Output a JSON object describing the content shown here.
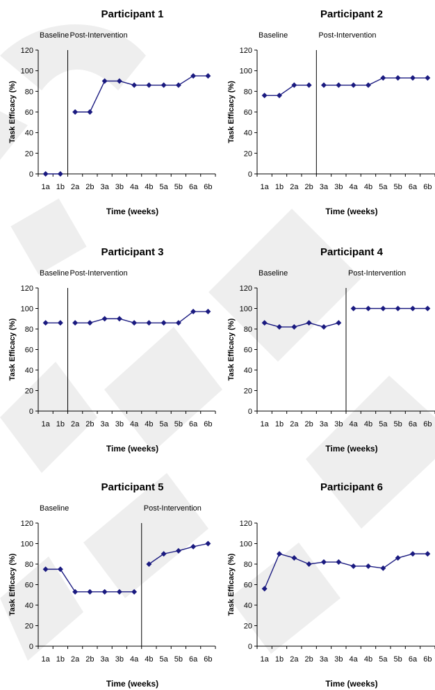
{
  "chart_data": [
    {
      "type": "line",
      "title": "Participant 1",
      "xlabel": "Time (weeks)",
      "ylabel": "Task Efficacy (%)",
      "categories": [
        "1a",
        "1b",
        "2a",
        "2b",
        "3a",
        "3b",
        "4a",
        "4b",
        "5a",
        "5b",
        "6a",
        "6b"
      ],
      "phase_labels": [
        "Baseline",
        "Post-Intervention"
      ],
      "phase_change_after_index": 1,
      "series": [
        {
          "values": [
            0,
            0,
            60,
            60,
            90,
            90,
            86,
            86,
            86,
            86,
            95,
            95
          ]
        }
      ],
      "ylim": [
        0,
        120
      ],
      "yticks": [
        0,
        20,
        40,
        60,
        80,
        100,
        120
      ],
      "grid": false,
      "legend": "none"
    },
    {
      "type": "line",
      "title": "Participant 2",
      "xlabel": "Time (weeks)",
      "ylabel": "Task Efficacy (%)",
      "categories": [
        "1a",
        "1b",
        "2a",
        "2b",
        "3a",
        "3b",
        "4a",
        "4b",
        "5a",
        "5b",
        "6a",
        "6b"
      ],
      "phase_labels": [
        "Baseline",
        "Post-Intervention"
      ],
      "phase_change_after_index": 3,
      "series": [
        {
          "values": [
            76,
            76,
            86,
            86,
            86,
            86,
            86,
            86,
            93,
            93,
            93,
            93
          ]
        }
      ],
      "ylim": [
        0,
        120
      ],
      "yticks": [
        0,
        20,
        40,
        60,
        80,
        100,
        120
      ],
      "grid": false,
      "legend": "none"
    },
    {
      "type": "line",
      "title": "Participant 3",
      "xlabel": "Time (weeks)",
      "ylabel": "Task Efficacy (%)",
      "categories": [
        "1a",
        "1b",
        "2a",
        "2b",
        "3a",
        "3b",
        "4a",
        "4b",
        "5a",
        "5b",
        "6a",
        "6b"
      ],
      "phase_labels": [
        "Baseline",
        "Post-Intervention"
      ],
      "phase_change_after_index": 1,
      "series": [
        {
          "values": [
            86,
            86,
            86,
            86,
            90,
            90,
            86,
            86,
            86,
            86,
            97,
            97
          ]
        }
      ],
      "ylim": [
        0,
        120
      ],
      "yticks": [
        0,
        20,
        40,
        60,
        80,
        100,
        120
      ],
      "grid": false,
      "legend": "none"
    },
    {
      "type": "line",
      "title": "Participant 4",
      "xlabel": "Time (weeks)",
      "ylabel": "Task Efficacy (%)",
      "categories": [
        "1a",
        "1b",
        "2a",
        "2b",
        "3a",
        "3b",
        "4a",
        "4b",
        "5a",
        "5b",
        "6a",
        "6b"
      ],
      "phase_labels": [
        "Baseline",
        "Post-Intervention"
      ],
      "phase_change_after_index": 5,
      "series": [
        {
          "values": [
            86,
            82,
            82,
            86,
            82,
            86,
            100,
            100,
            100,
            100,
            100,
            100
          ]
        }
      ],
      "ylim": [
        0,
        120
      ],
      "yticks": [
        0,
        20,
        40,
        60,
        80,
        100,
        120
      ],
      "grid": false,
      "legend": "none"
    },
    {
      "type": "line",
      "title": "Participant 5",
      "xlabel": "Time (weeks)",
      "ylabel": "Task Efficacy (%)",
      "categories": [
        "1a",
        "1b",
        "2a",
        "2b",
        "3a",
        "3b",
        "4a",
        "4b",
        "5a",
        "5b",
        "6a",
        "6b"
      ],
      "phase_labels": [
        "Baseline",
        "Post-Intervention"
      ],
      "phase_change_after_index": 6,
      "series": [
        {
          "values": [
            75,
            75,
            53,
            53,
            53,
            53,
            53,
            80,
            90,
            93,
            97,
            100
          ]
        }
      ],
      "ylim": [
        0,
        120
      ],
      "yticks": [
        0,
        20,
        40,
        60,
        80,
        100,
        120
      ],
      "grid": false,
      "legend": "none"
    },
    {
      "type": "line",
      "title": "Participant 6",
      "xlabel": "Time (weeks)",
      "ylabel": "Task Efficacy (%)",
      "categories": [
        "1a",
        "1b",
        "2a",
        "2b",
        "3a",
        "3b",
        "4a",
        "4b",
        "5a",
        "5b",
        "6a",
        "6b"
      ],
      "phase_labels": [],
      "phase_change_after_index": null,
      "series": [
        {
          "values": [
            56,
            90,
            86,
            80,
            82,
            82,
            78,
            78,
            76,
            86,
            90,
            90
          ]
        }
      ],
      "ylim": [
        0,
        120
      ],
      "yticks": [
        0,
        20,
        40,
        60,
        80,
        100,
        120
      ],
      "grid": false,
      "legend": "none"
    }
  ],
  "colors": {
    "series": "#1a1a80",
    "axis": "#000000",
    "text": "#000000",
    "watermark": "#dcdcdc"
  }
}
